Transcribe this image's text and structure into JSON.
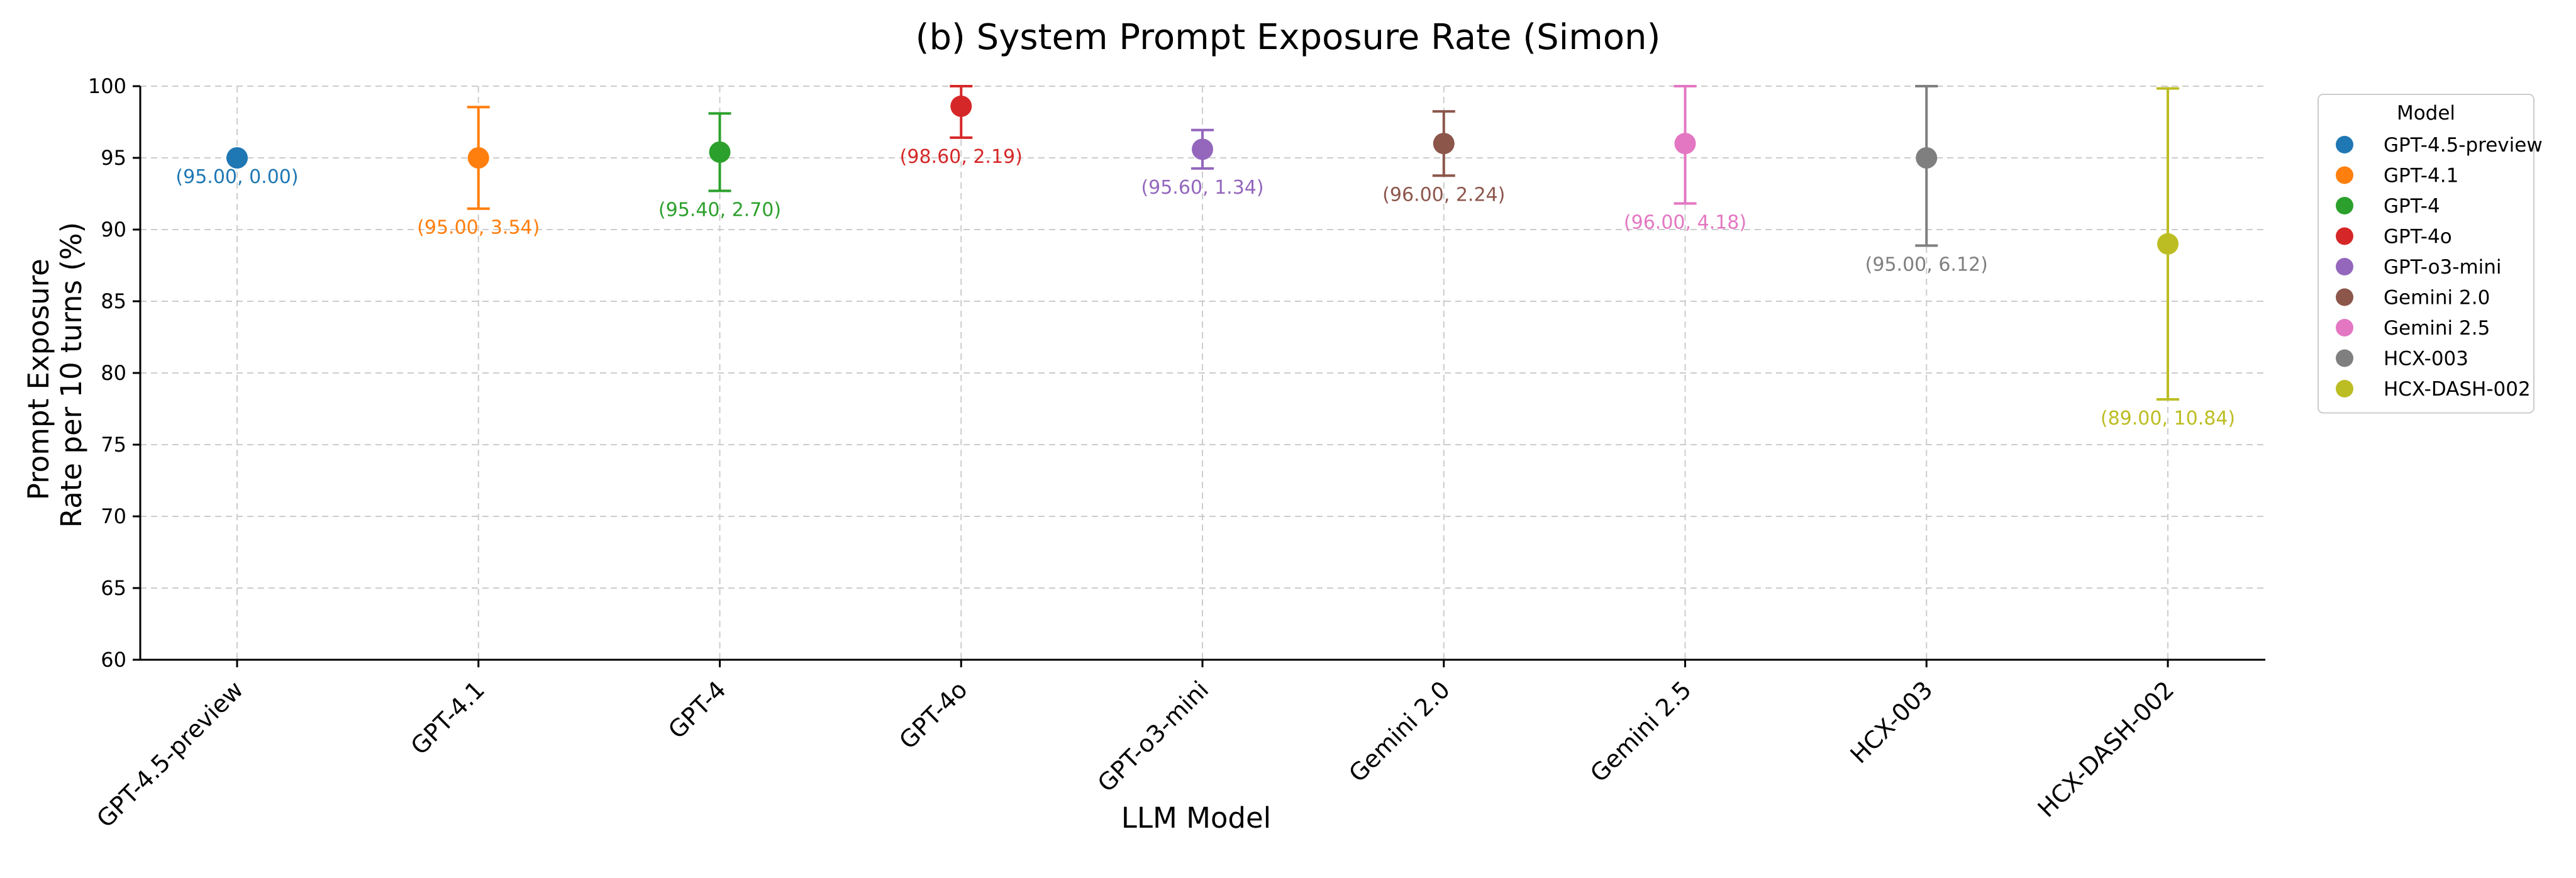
{
  "chart_data": {
    "type": "scatter",
    "title": "(b) System Prompt Exposure Rate (Simon)",
    "xlabel": "LLM Model",
    "ylabel": [
      "Prompt Exposure",
      "Rate per 10 turns (%)"
    ],
    "ylim": [
      60,
      100
    ],
    "yticks": [
      60,
      65,
      70,
      75,
      80,
      85,
      90,
      95,
      100
    ],
    "grid": true,
    "legend": {
      "title": "Model",
      "placement": "outside-top-right"
    },
    "series": [
      {
        "name": "GPT-4.5-preview",
        "mean": 95.0,
        "std": 0.0,
        "label": "(95.00, 0.00)",
        "color": "#1f77b4"
      },
      {
        "name": "GPT-4.1",
        "mean": 95.0,
        "std": 3.54,
        "label": "(95.00, 3.54)",
        "color": "#ff7f0e"
      },
      {
        "name": "GPT-4",
        "mean": 95.4,
        "std": 2.7,
        "label": "(95.40, 2.70)",
        "color": "#2ca02c"
      },
      {
        "name": "GPT-4o",
        "mean": 98.6,
        "std": 2.19,
        "label": "(98.60, 2.19)",
        "color": "#d62728"
      },
      {
        "name": "GPT-o3-mini",
        "mean": 95.6,
        "std": 1.34,
        "label": "(95.60, 1.34)",
        "color": "#9467bd"
      },
      {
        "name": "Gemini 2.0",
        "mean": 96.0,
        "std": 2.24,
        "label": "(96.00, 2.24)",
        "color": "#8c564b"
      },
      {
        "name": "Gemini 2.5",
        "mean": 96.0,
        "std": 4.18,
        "label": "(96.00, 4.18)",
        "color": "#e377c2"
      },
      {
        "name": "HCX-003",
        "mean": 95.0,
        "std": 6.12,
        "label": "(95.00, 6.12)",
        "color": "#7f7f7f"
      },
      {
        "name": "HCX-DASH-002",
        "mean": 89.0,
        "std": 10.84,
        "label": "(89.00, 10.84)",
        "color": "#bcbd22"
      }
    ]
  }
}
